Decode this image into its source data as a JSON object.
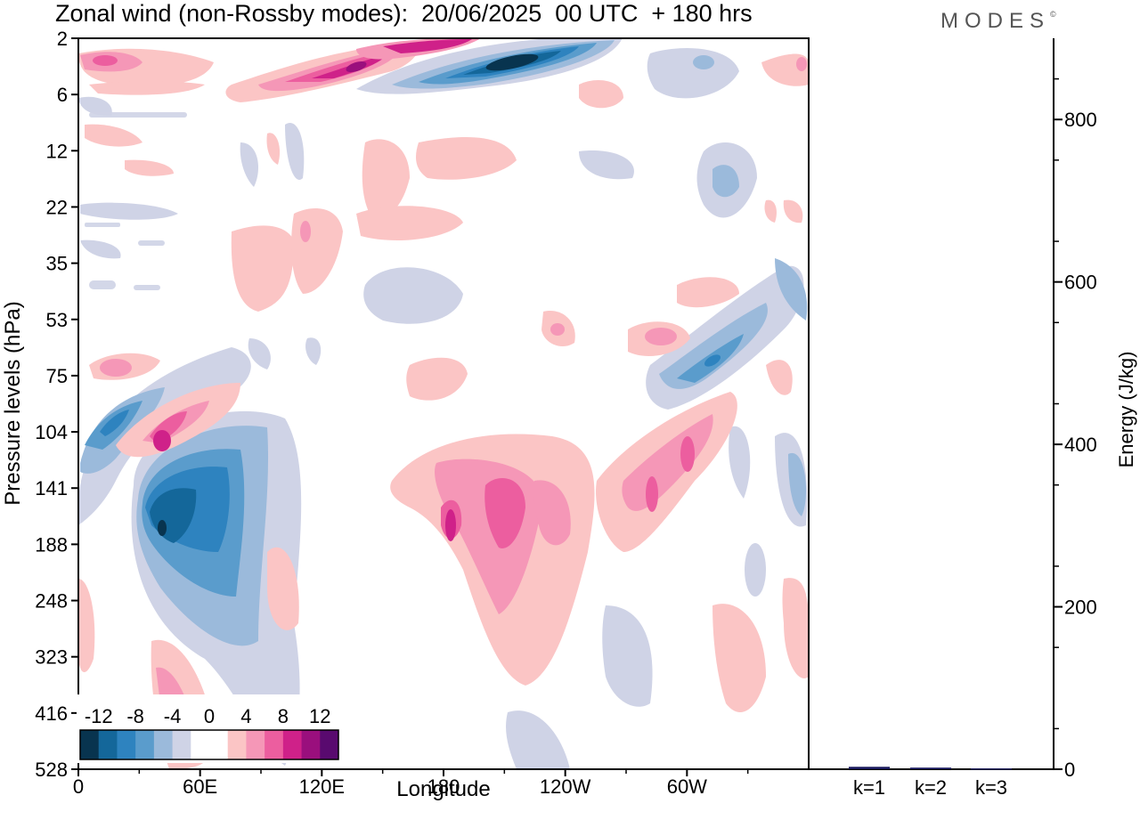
{
  "title": "Zonal wind (non-Rossby modes):  20/06/2025  00 UTC  + 180 hrs",
  "logo": {
    "text": "MODES",
    "mark": "©"
  },
  "chart_data": [
    {
      "type": "heatmap",
      "title": "Zonal wind (non-Rossby modes):  20/06/2025  00 UTC  + 180 hrs",
      "xlabel": "Longitude",
      "ylabel": "Pressure levels (hPa)",
      "x_ticks": [
        "0",
        "60E",
        "120E",
        "180",
        "120W",
        "60W"
      ],
      "y_ticks": [
        "2",
        "6",
        "12",
        "22",
        "35",
        "53",
        "75",
        "104",
        "141",
        "188",
        "248",
        "323",
        "416",
        "528"
      ],
      "colorbar": {
        "tick_labels": [
          "-12",
          "-8",
          "-4",
          "0",
          "4",
          "8",
          "12"
        ],
        "levels": [
          -14,
          -12,
          -10,
          -8,
          -6,
          -4,
          -2,
          0,
          2,
          4,
          6,
          8,
          10,
          12,
          14
        ],
        "colors": [
          "#08344f",
          "#14679a",
          "#2e83bf",
          "#5a9ccc",
          "#9bbadb",
          "#cfd3e6",
          "#ffffff",
          "#ffffff",
          "#fbc5c5",
          "#f597b7",
          "#ec5e9f",
          "#cf2189",
          "#9a0f7d",
          "#590a6f"
        ]
      },
      "features": [
        {
          "lon": 205,
          "level_index": 0.45,
          "value": -14
        },
        {
          "lon": 125,
          "level_index": 0.65,
          "value": 11
        },
        {
          "lon": 165,
          "level_index": 0.35,
          "value": 10
        },
        {
          "lon": 43,
          "level_index": 9.4,
          "value": -12
        },
        {
          "lon": 18,
          "level_index": 7.6,
          "value": -9
        },
        {
          "lon": 44,
          "level_index": 8.2,
          "value": 8
        },
        {
          "lon": 190,
          "level_index": 8.9,
          "value": 10
        },
        {
          "lon": 168,
          "level_index": 9.2,
          "value": 9
        },
        {
          "lon": 275,
          "level_index": 8.3,
          "value": 9
        },
        {
          "lon": 310,
          "level_index": 6.6,
          "value": -8
        }
      ]
    },
    {
      "type": "bar",
      "categories": [
        "k=1",
        "k=2",
        "k=3"
      ],
      "values": [
        3,
        2,
        1
      ],
      "ylabel": "Energy (J/kg)",
      "y_ticks": [
        "0",
        "200",
        "400",
        "600",
        "800"
      ],
      "ylim": [
        0,
        900
      ],
      "bar_color": "#1a1a5e"
    }
  ]
}
